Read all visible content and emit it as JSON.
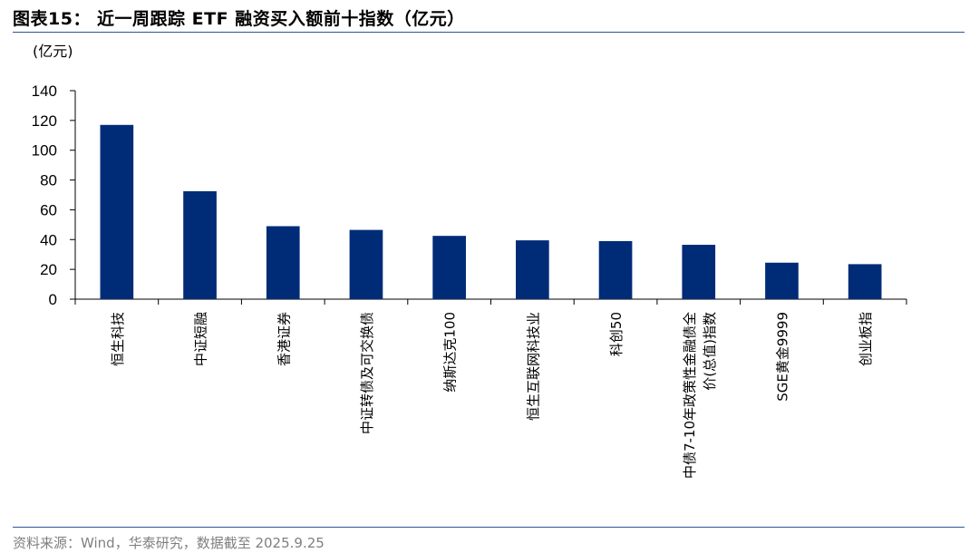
{
  "figure": {
    "title": "图表15：  近一周跟踪 ETF 融资买入额前十指数（亿元）",
    "source": "资料来源：Wind，华泰研究，数据截至 2025.9.25"
  },
  "chart_data": {
    "type": "bar",
    "title": "近一周跟踪 ETF 融资买入额前十指数（亿元）",
    "ylabel": "(亿元)",
    "xlabel": "",
    "ylim": [
      0,
      140
    ],
    "yticks": [
      0,
      20,
      40,
      60,
      80,
      100,
      120,
      140
    ],
    "grid": false,
    "legend": "none",
    "bar_color": "#002c77",
    "categories": [
      [
        "恒生科技"
      ],
      [
        "中证短融"
      ],
      [
        "香港证券"
      ],
      [
        "中证转债及可交换债"
      ],
      [
        "纳斯达克100"
      ],
      [
        "恒生互联网科技业"
      ],
      [
        "科创50"
      ],
      [
        "中债7-10年政策性金融债全",
        "价(总值)指数"
      ],
      [
        "SGE黄金9999"
      ],
      [
        "创业板指"
      ]
    ],
    "values": [
      117,
      72.5,
      49,
      46.5,
      42.5,
      39.5,
      39,
      36.5,
      24.5,
      23.5
    ]
  }
}
